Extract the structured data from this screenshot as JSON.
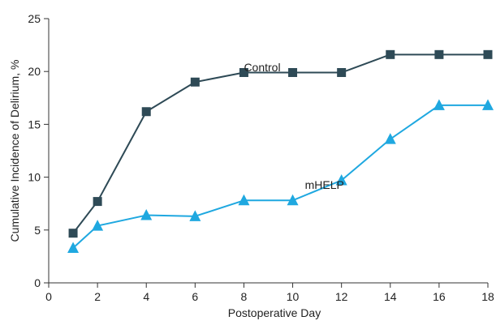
{
  "chart_data": {
    "type": "line",
    "xlabel": "Postoperative Day",
    "ylabel": "Cumulative Incidence of Delirium, %",
    "xlim": [
      0,
      18
    ],
    "ylim": [
      0,
      25
    ],
    "xticks": [
      0,
      2,
      4,
      6,
      8,
      10,
      12,
      14,
      16,
      18
    ],
    "yticks": [
      0,
      5,
      10,
      15,
      20,
      25
    ],
    "grid": false,
    "legend": "none (series labeled inline)",
    "series": [
      {
        "name": "Control",
        "marker": "square",
        "color": "#2e4a56",
        "x": [
          1,
          2,
          4,
          6,
          8,
          10,
          12,
          14,
          16,
          18
        ],
        "y": [
          4.7,
          7.7,
          16.2,
          19.0,
          19.9,
          19.9,
          19.9,
          21.6,
          21.6,
          21.6
        ]
      },
      {
        "name": "mHELP",
        "marker": "triangle",
        "color": "#1fa8e0",
        "x": [
          1,
          2,
          4,
          6,
          8,
          10,
          12,
          14,
          16,
          18
        ],
        "y": [
          3.3,
          5.4,
          6.4,
          6.3,
          7.8,
          7.8,
          9.7,
          13.6,
          16.8,
          16.8
        ]
      }
    ]
  }
}
